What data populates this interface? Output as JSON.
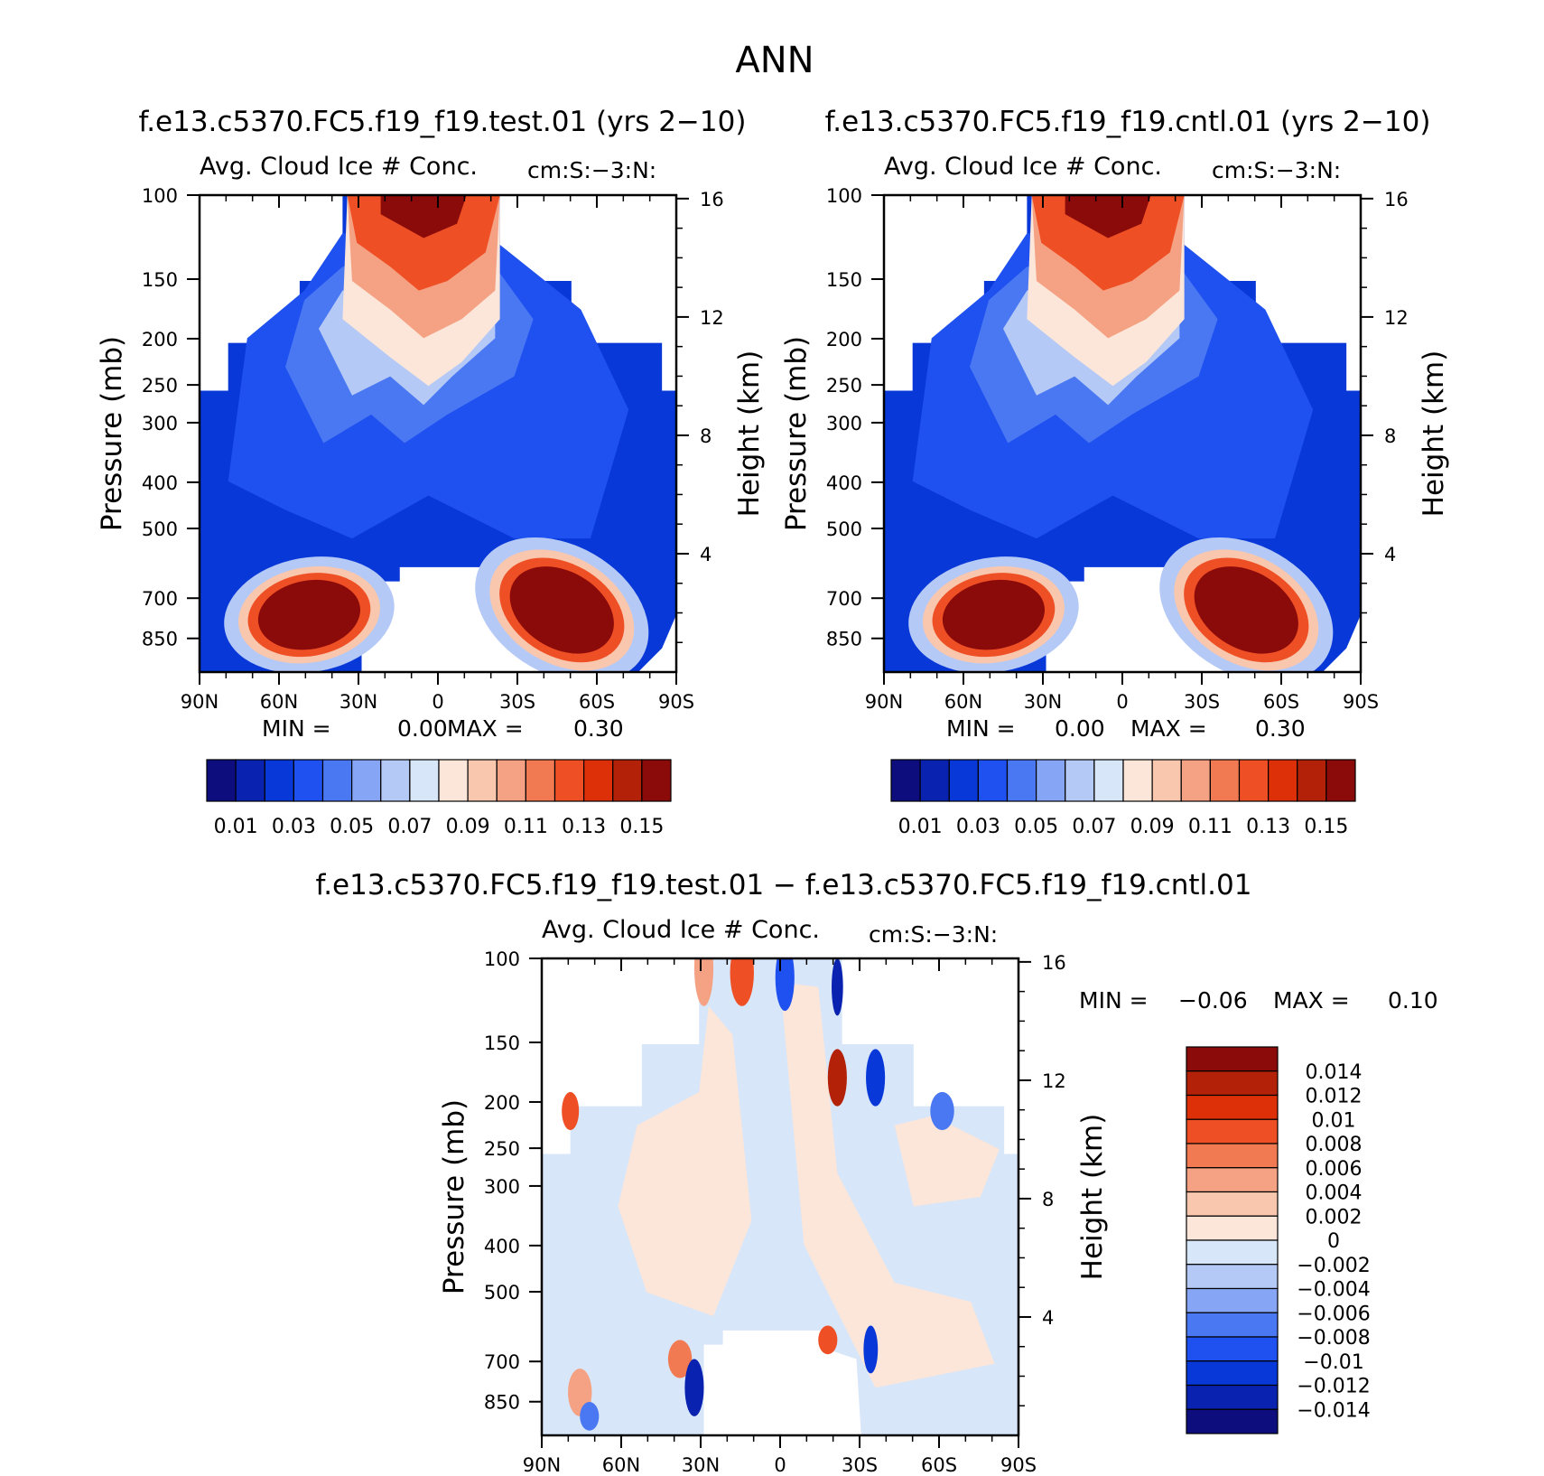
{
  "figure": {
    "title": "ANN",
    "test_case_header": "f.e13.c5370.FC5.f19_f19.test.01 (yrs 2−10)",
    "control_case_header": "f.e13.c5370.FC5.f19_f19.cntl.01 (yrs 2−10)",
    "difference_header": "f.e13.c5370.FC5.f19_f19.test.01 − f.e13.c5370.FC5.f19_f19.cntl.01"
  },
  "chart_data": [
    {
      "id": "test",
      "type": "contour",
      "title_left": "Avg. Cloud Ice # Conc.",
      "title_right": "cm:S:−3:N:",
      "ylabel": "Pressure (mb)",
      "ylabel_right": "Height (km)",
      "pressure_ticks": [
        100,
        150,
        200,
        250,
        300,
        400,
        500,
        700,
        850
      ],
      "pressure_tick_labels": [
        "100",
        "150",
        "200",
        "250",
        "300",
        "400",
        "500",
        "700",
        "850"
      ],
      "height_ticks": [
        4,
        8,
        12,
        16
      ],
      "height_tick_labels": [
        "4",
        "8",
        "12",
        "16"
      ],
      "lat_ticks": [
        90,
        60,
        30,
        0,
        -30,
        -60,
        -90
      ],
      "lat_tick_labels": [
        "90N",
        "60N",
        "30N",
        "0",
        "30S",
        "60S",
        "90S"
      ],
      "ylim": [
        100,
        1000
      ],
      "xlim": [
        90,
        -90
      ],
      "min_label": "MIN =",
      "min_value": "0.00",
      "max_label": "MAX =",
      "max_value": "0.30",
      "colorbar_levels": [
        "0.01",
        "0.03",
        "0.05",
        "0.07",
        "0.09",
        "0.11",
        "0.13",
        "0.15"
      ],
      "colorbar_colors": [
        "#0d0d7e",
        "#0a22b0",
        "#0838d8",
        "#1f50f0",
        "#4a78f2",
        "#86a6f5",
        "#b5c9f7",
        "#d8e6f9",
        "#fbe6d9",
        "#f8c7ae",
        "#f5a183",
        "#f27a52",
        "#ee4f24",
        "#dd3009",
        "#b32108",
        "#8b0a0a"
      ]
    },
    {
      "id": "control",
      "type": "contour",
      "title_left": "Avg. Cloud Ice # Conc.",
      "title_right": "cm:S:−3:N:",
      "ylabel": "Pressure (mb)",
      "ylabel_right": "Height (km)",
      "pressure_ticks": [
        100,
        150,
        200,
        250,
        300,
        400,
        500,
        700,
        850
      ],
      "pressure_tick_labels": [
        "100",
        "150",
        "200",
        "250",
        "300",
        "400",
        "500",
        "700",
        "850"
      ],
      "height_ticks": [
        4,
        8,
        12,
        16
      ],
      "height_tick_labels": [
        "4",
        "8",
        "12",
        "16"
      ],
      "lat_ticks": [
        90,
        60,
        30,
        0,
        -30,
        -60,
        -90
      ],
      "lat_tick_labels": [
        "90N",
        "60N",
        "30N",
        "0",
        "30S",
        "60S",
        "90S"
      ],
      "ylim": [
        100,
        1000
      ],
      "xlim": [
        90,
        -90
      ],
      "min_label": "MIN =",
      "min_value": "0.00",
      "max_label": "MAX =",
      "max_value": "0.30",
      "colorbar_levels": [
        "0.01",
        "0.03",
        "0.05",
        "0.07",
        "0.09",
        "0.11",
        "0.13",
        "0.15"
      ],
      "colorbar_colors": [
        "#0d0d7e",
        "#0a22b0",
        "#0838d8",
        "#1f50f0",
        "#4a78f2",
        "#86a6f5",
        "#b5c9f7",
        "#d8e6f9",
        "#fbe6d9",
        "#f8c7ae",
        "#f5a183",
        "#f27a52",
        "#ee4f24",
        "#dd3009",
        "#b32108",
        "#8b0a0a"
      ]
    },
    {
      "id": "difference",
      "type": "contour",
      "title_left": "Avg. Cloud Ice # Conc.",
      "title_right": "cm:S:−3:N:",
      "ylabel": "Pressure (mb)",
      "ylabel_right": "Height (km)",
      "pressure_ticks": [
        100,
        150,
        200,
        250,
        300,
        400,
        500,
        700,
        850
      ],
      "pressure_tick_labels": [
        "100",
        "150",
        "200",
        "250",
        "300",
        "400",
        "500",
        "700",
        "850"
      ],
      "height_ticks": [
        4,
        8,
        12,
        16
      ],
      "height_tick_labels": [
        "4",
        "8",
        "12",
        "16"
      ],
      "lat_ticks": [
        90,
        60,
        30,
        0,
        -30,
        -60,
        -90
      ],
      "lat_tick_labels": [
        "90N",
        "60N",
        "30N",
        "0",
        "30S",
        "60S",
        "90S"
      ],
      "ylim": [
        100,
        1000
      ],
      "xlim": [
        90,
        -90
      ],
      "min_label": "MIN =",
      "min_value": "−0.06",
      "max_label": "MAX =",
      "max_value": "0.10",
      "colorbar_levels": [
        "0.014",
        "0.012",
        "0.01",
        "0.008",
        "0.006",
        "0.004",
        "0.002",
        "0",
        "−0.002",
        "−0.004",
        "−0.006",
        "−0.008",
        "−0.01",
        "−0.012",
        "−0.014"
      ],
      "colorbar_colors": [
        "#8b0a0a",
        "#b32108",
        "#dd3009",
        "#ee4f24",
        "#f27a52",
        "#f5a183",
        "#f8c7ae",
        "#fbe6d9",
        "#d8e6f9",
        "#b5c9f7",
        "#86a6f5",
        "#4a78f2",
        "#1f50f0",
        "#0838d8",
        "#0a22b0",
        "#0d0d7e"
      ]
    }
  ]
}
